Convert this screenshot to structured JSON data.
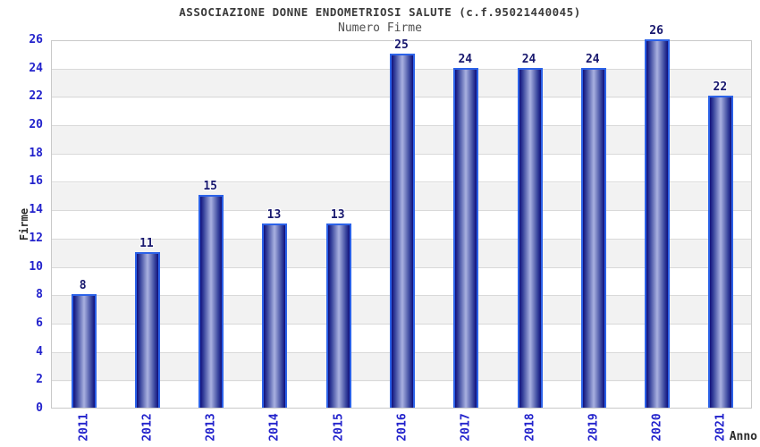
{
  "title": "ASSOCIAZIONE DONNE ENDOMETRIOSI SALUTE (c.f.95021440045)",
  "subtitle": "Numero Firme",
  "chart_data": {
    "type": "bar",
    "title": "ASSOCIAZIONE DONNE ENDOMETRIOSI SALUTE (c.f.95021440045)",
    "subtitle": "Numero Firme",
    "xlabel": "Anno",
    "ylabel": "Firme",
    "categories": [
      "2011",
      "2012",
      "2013",
      "2014",
      "2015",
      "2016",
      "2017",
      "2018",
      "2019",
      "2020",
      "2021"
    ],
    "values": [
      8,
      11,
      15,
      13,
      13,
      25,
      24,
      24,
      24,
      26,
      22
    ],
    "ylim": [
      0,
      26
    ],
    "ytick_step": 2,
    "yticks": [
      0,
      2,
      4,
      6,
      8,
      10,
      12,
      14,
      16,
      18,
      20,
      22,
      24,
      26
    ],
    "grid": "horizontal",
    "legend": "none",
    "bands_alternating": true,
    "colors": {
      "bar_edge": "#2c62e8",
      "bar_dark": "#0f0f7c",
      "bar_light": "#a9b1e0",
      "tick_label": "#2323cc",
      "value_label": "#18186e",
      "band_gray": "#f2f2f2",
      "gridline": "#d9d9d9",
      "title_text": "#3a3a3a",
      "subtitle_text": "#4f4f4f"
    }
  }
}
